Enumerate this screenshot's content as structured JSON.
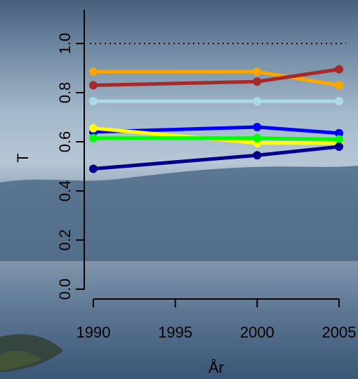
{
  "chart_data": {
    "type": "line",
    "xlabel": "År",
    "ylabel": "T",
    "x": [
      1990,
      2000,
      2005
    ],
    "xlim": [
      1990,
      2005
    ],
    "ylim": [
      0,
      1
    ],
    "x_ticks": [
      "1990",
      "1995",
      "2000",
      "2005"
    ],
    "y_ticks": [
      "0.0",
      "0.2",
      "0.4",
      "0.6",
      "0.8",
      "1.0"
    ],
    "reference_line": {
      "y": 1.0,
      "style": "dotted",
      "color": "#000000"
    },
    "background": "lake landscape photo",
    "series": [
      {
        "color": "#ffa500",
        "values": [
          0.885,
          0.885,
          0.83
        ]
      },
      {
        "color": "#a52a2a",
        "values": [
          0.83,
          0.845,
          0.895
        ]
      },
      {
        "color": "#add8e6",
        "values": [
          0.765,
          0.765,
          0.765
        ]
      },
      {
        "color": "#0000ff",
        "values": [
          0.64,
          0.66,
          0.635
        ]
      },
      {
        "color": "#ffff00",
        "values": [
          0.655,
          0.595,
          0.595
        ]
      },
      {
        "color": "#00ff00",
        "values": [
          0.615,
          0.615,
          0.61
        ]
      },
      {
        "color": "#00008b",
        "values": [
          0.49,
          0.545,
          0.58
        ]
      }
    ]
  }
}
